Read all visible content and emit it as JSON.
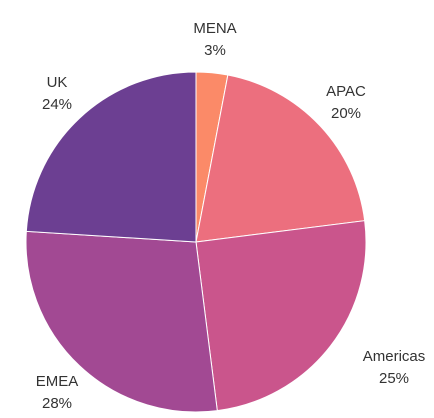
{
  "chart_data": {
    "type": "pie",
    "title": "",
    "start_angle_deg": 0,
    "direction": "clockwise",
    "slices": [
      {
        "label": "MENA",
        "percent_label": "3%",
        "value": 3,
        "color": "#fb8a68"
      },
      {
        "label": "APAC",
        "percent_label": "20%",
        "value": 20,
        "color": "#ec6f7e"
      },
      {
        "label": "Americas",
        "percent_label": "25%",
        "value": 25,
        "color": "#ca558c"
      },
      {
        "label": "EMEA",
        "percent_label": "28%",
        "value": 28,
        "color": "#a24993"
      },
      {
        "label": "UK",
        "percent_label": "24%",
        "value": 24,
        "color": "#6c3f92"
      }
    ]
  }
}
